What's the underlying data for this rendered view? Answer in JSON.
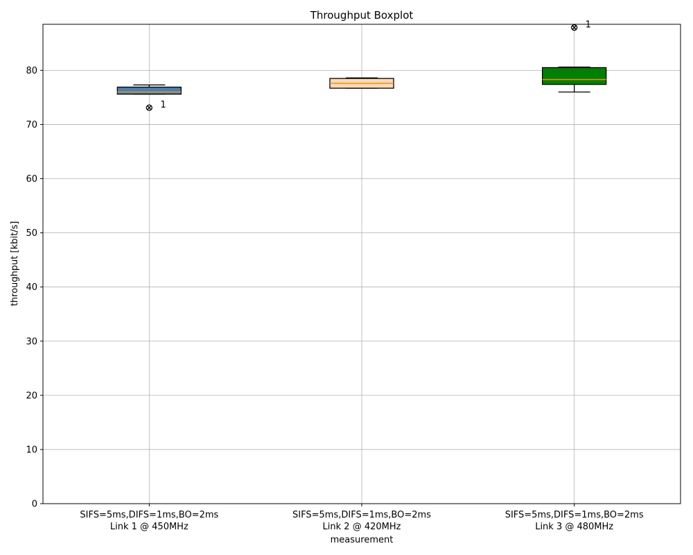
{
  "chart_data": {
    "type": "box",
    "title": "Throughput Boxplot",
    "xlabel": "measurement",
    "ylabel": "throughput [kbit/s]",
    "ylim": [
      0,
      88.5
    ],
    "yticks": [
      0,
      10,
      20,
      30,
      40,
      50,
      60,
      70,
      80
    ],
    "grid": true,
    "categories": [
      [
        "SIFS=5ms,DIFS=1ms,BO=2ms",
        "Link 1 @ 450MHz"
      ],
      [
        "SIFS=5ms,DIFS=1ms,BO=2ms",
        "Link 2 @ 420MHz"
      ],
      [
        "SIFS=5ms,DIFS=1ms,BO=2ms",
        "Link 3 @ 480MHz"
      ]
    ],
    "boxes": [
      {
        "whisker_low": 75.6,
        "q1": 75.6,
        "median": 76.0,
        "q3": 76.9,
        "whisker_high": 77.3,
        "outliers": [
          73.1
        ],
        "outlier_label": "1",
        "color": "#4682b4"
      },
      {
        "whisker_low": 76.7,
        "q1": 76.7,
        "median": 77.6,
        "q3": 78.5,
        "whisker_high": 78.6,
        "outliers": [],
        "color": "#ffdab9"
      },
      {
        "whisker_low": 76.0,
        "q1": 77.4,
        "median": 78.3,
        "q3": 80.5,
        "whisker_high": 80.6,
        "outliers": [
          87.9
        ],
        "outlier_label": "1",
        "color": "#008000"
      }
    ],
    "median_color": "#ff8c00"
  }
}
